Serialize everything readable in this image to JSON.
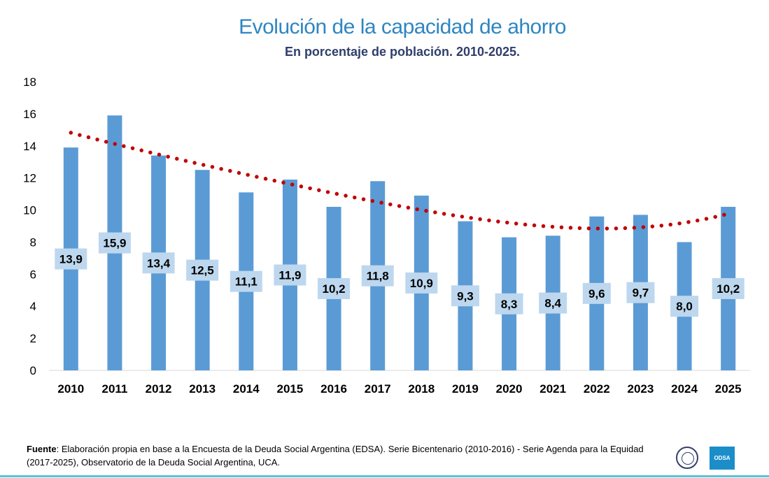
{
  "chart_data": {
    "type": "bar",
    "title": "Evolución de la capacidad de ahorro",
    "subtitle": "En porcentaje de población. 2010-2025.",
    "categories": [
      "2010",
      "2011",
      "2012",
      "2013",
      "2014",
      "2015",
      "2016",
      "2017",
      "2018",
      "2019",
      "2020",
      "2021",
      "2022",
      "2023",
      "2024",
      "2025"
    ],
    "values": [
      13.9,
      15.9,
      13.4,
      12.5,
      11.1,
      11.9,
      10.2,
      11.8,
      10.9,
      9.3,
      8.3,
      8.4,
      9.6,
      9.7,
      8.0,
      10.2
    ],
    "data_labels": [
      "13,9",
      "15,9",
      "13,4",
      "12,5",
      "11,1",
      "11,9",
      "10,2",
      "11,8",
      "10,9",
      "9,3",
      "8,3",
      "8,4",
      "9,6",
      "9,7",
      "8,0",
      "10,2"
    ],
    "ylim": [
      0,
      18
    ],
    "yticks": [
      "0",
      "2",
      "4",
      "6",
      "8",
      "10",
      "12",
      "14",
      "16",
      "18"
    ],
    "grid": false,
    "trendline": "polynomial",
    "colors": {
      "bar": "#5b9bd5",
      "label_box": "#bdd7ee",
      "trendline": "#c00000"
    }
  },
  "footer": {
    "bold": "Fuente",
    "text": ": Elaboración propia en base a la Encuesta de la Deuda Social Argentina (EDSA). Serie Bicentenario (2010-2016) - Serie Agenda para la Equidad (2017-2025), Observatorio de la Deuda Social Argentina, UCA."
  },
  "logos": {
    "odsa": "ODSA"
  }
}
